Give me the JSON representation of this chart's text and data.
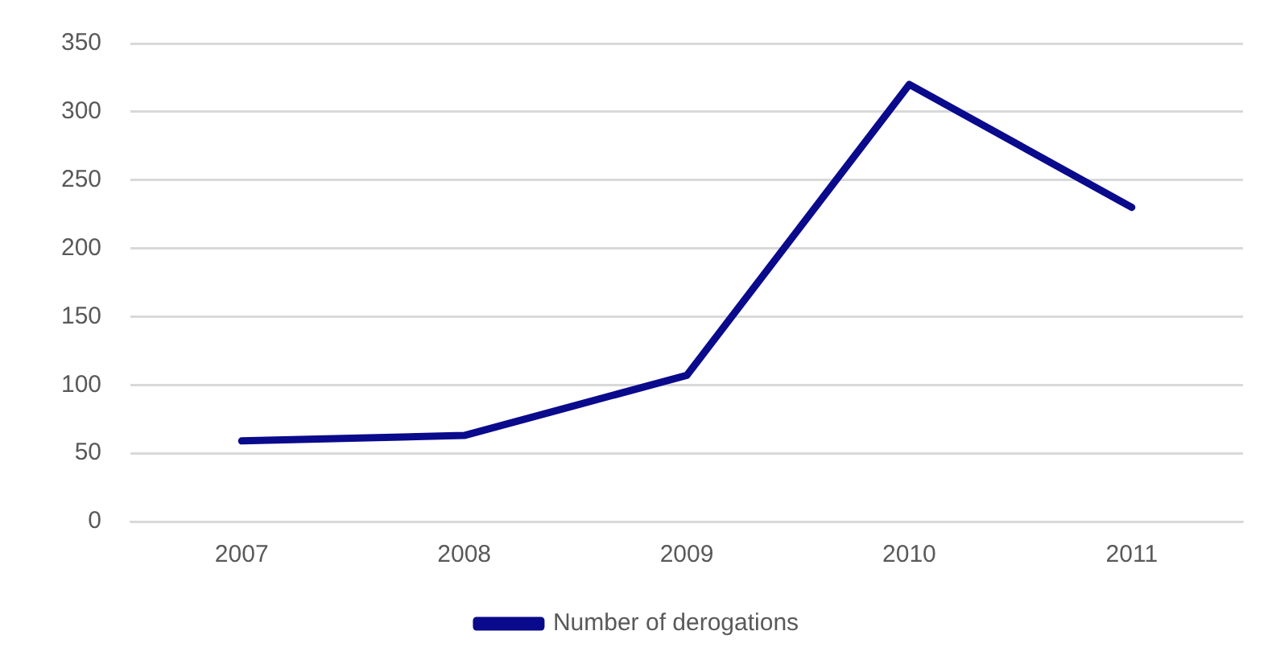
{
  "chart_data": {
    "type": "line",
    "categories": [
      "2007",
      "2008",
      "2009",
      "2010",
      "2011"
    ],
    "series": [
      {
        "name": "Number of derogations",
        "color": "#0a0a8c",
        "values": [
          59,
          63,
          107,
          320,
          230
        ]
      }
    ],
    "ylim": [
      0,
      350
    ],
    "yticks": [
      0,
      50,
      100,
      150,
      200,
      250,
      300,
      350
    ],
    "grid": "y",
    "legend": "bottom",
    "marker": "none",
    "line_style": "solid"
  }
}
